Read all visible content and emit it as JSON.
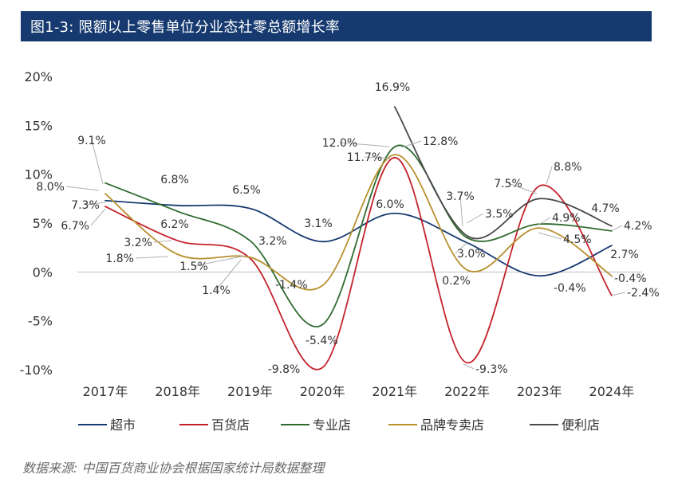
{
  "header": {
    "title": "图1-3:  限额以上零售单位分业态社零总额增长率"
  },
  "footer": {
    "note": "数据来源: 中国百货商业协会根据国家统计局数据整理"
  },
  "chart_data": {
    "type": "line",
    "categories": [
      "2017年",
      "2018年",
      "2019年",
      "2020年",
      "2021年",
      "2022年",
      "2023年",
      "2024年"
    ],
    "y_tick_labels": [
      "20%",
      "15%",
      "10%",
      "5%",
      "0%",
      "-5%",
      "-10%"
    ],
    "ylim": [
      -10,
      20
    ],
    "series": [
      {
        "name": "超市",
        "color": "#163a70",
        "values": [
          7.3,
          6.8,
          6.5,
          3.1,
          6.0,
          3.0,
          -0.4,
          2.7
        ],
        "labels": [
          "7.3%",
          "6.8%",
          "6.5%",
          "3.1%",
          "6.0%",
          "3.0%",
          "-0.4%",
          "2.7%"
        ]
      },
      {
        "name": "百货店",
        "color": "#c4222b",
        "values": [
          6.7,
          3.2,
          1.4,
          -9.8,
          11.7,
          -9.3,
          8.8,
          -2.4
        ],
        "labels": [
          "6.7%",
          "3.2%",
          "1.4%",
          "-9.8%",
          "11.7%",
          "-9.3%",
          "8.8%",
          "-2.4%"
        ]
      },
      {
        "name": "专业店",
        "color": "#2f6b2f",
        "values": [
          9.1,
          6.2,
          3.2,
          -5.4,
          12.8,
          3.5,
          4.9,
          4.2
        ],
        "labels": [
          "9.1%",
          "6.2%",
          "3.2%",
          "-5.4%",
          "12.8%",
          "3.5%",
          "4.9%",
          "4.2%"
        ]
      },
      {
        "name": "品牌专卖店",
        "color": "#b8902e",
        "values": [
          8.0,
          1.8,
          1.5,
          -1.4,
          12.0,
          0.2,
          4.5,
          -0.4
        ],
        "labels": [
          "8.0%",
          "1.8%",
          "1.5%",
          "-1.4%",
          "12.0%",
          "0.2%",
          "4.5%",
          "-0.4%"
        ]
      },
      {
        "name": "便利店",
        "color": "#4a4a4a",
        "values": [
          null,
          null,
          null,
          null,
          16.9,
          3.7,
          7.5,
          4.7
        ],
        "labels": [
          "",
          "",
          "",
          "",
          "16.9%",
          "3.7%",
          "7.5%",
          "4.7%"
        ]
      }
    ],
    "legend_position": "bottom",
    "grid": false
  }
}
